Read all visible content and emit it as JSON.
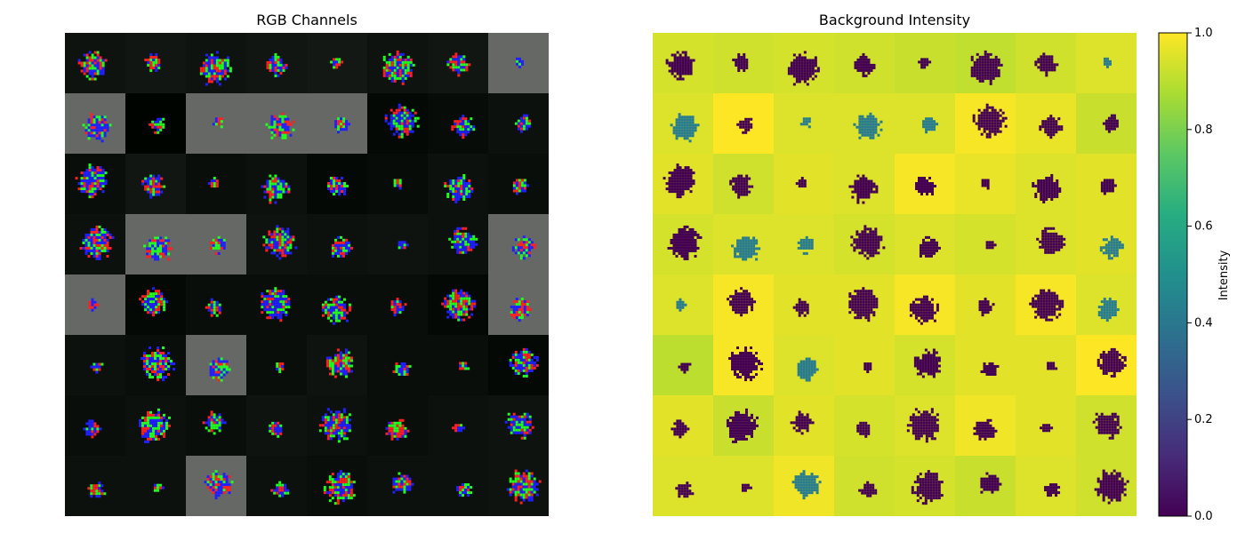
{
  "chart_data": [
    {
      "type": "heatmap",
      "title": "RGB Channels",
      "grid": "8x8 image tiles",
      "rows": 8,
      "cols": 8,
      "background_levels": [
        [
          0.06,
          0.07,
          0.06,
          0.07,
          0.08,
          0.06,
          0.07,
          0.4
        ],
        [
          0.4,
          0.0,
          0.4,
          0.4,
          0.4,
          0.02,
          0.03,
          0.05
        ],
        [
          0.04,
          0.07,
          0.04,
          0.05,
          0.02,
          0.03,
          0.05,
          0.04
        ],
        [
          0.05,
          0.4,
          0.4,
          0.06,
          0.05,
          0.06,
          0.05,
          0.4
        ],
        [
          0.4,
          0.02,
          0.04,
          0.04,
          0.04,
          0.04,
          0.02,
          0.4
        ],
        [
          0.05,
          0.04,
          0.4,
          0.04,
          0.06,
          0.04,
          0.04,
          0.02
        ],
        [
          0.04,
          0.05,
          0.04,
          0.06,
          0.05,
          0.04,
          0.05,
          0.06
        ],
        [
          0.05,
          0.05,
          0.4,
          0.05,
          0.04,
          0.05,
          0.05,
          0.06
        ]
      ]
    },
    {
      "type": "heatmap",
      "title": "Background Intensity",
      "rows": 8,
      "cols": 8,
      "colormap": "viridis",
      "colorbar": {
        "label": "Intensity",
        "range": [
          0.0,
          1.0
        ],
        "ticks": [
          "0.0",
          "0.2",
          "0.4",
          "0.6",
          "0.8",
          "1.0"
        ]
      },
      "background_intensity": [
        [
          0.94,
          0.93,
          0.94,
          0.93,
          0.92,
          0.91,
          0.93,
          0.95
        ],
        [
          0.95,
          1.0,
          0.95,
          0.95,
          0.95,
          0.99,
          0.97,
          0.92
        ],
        [
          0.96,
          0.93,
          0.96,
          0.95,
          0.99,
          0.97,
          0.95,
          0.96
        ],
        [
          0.94,
          0.95,
          0.95,
          0.94,
          0.95,
          0.94,
          0.95,
          0.96
        ],
        [
          0.95,
          0.99,
          0.96,
          0.96,
          0.99,
          0.96,
          0.99,
          0.95
        ],
        [
          0.9,
          0.99,
          0.95,
          0.96,
          0.94,
          0.96,
          0.96,
          1.0
        ],
        [
          0.96,
          0.92,
          0.96,
          0.94,
          0.95,
          0.98,
          0.96,
          0.93
        ],
        [
          0.95,
          0.95,
          0.98,
          0.93,
          0.94,
          0.92,
          0.95,
          0.93
        ]
      ]
    }
  ]
}
